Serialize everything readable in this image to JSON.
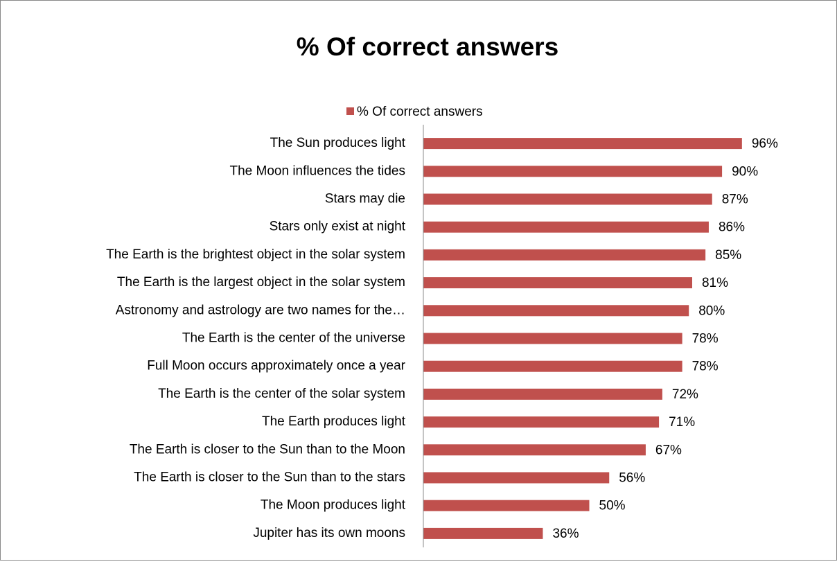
{
  "chart_data": {
    "type": "bar",
    "orientation": "horizontal",
    "title": "% Of correct answers",
    "legend_position": "top",
    "series": [
      {
        "name": "% Of correct answers",
        "color": "#c0504d",
        "values": [
          96,
          90,
          87,
          86,
          85,
          81,
          80,
          78,
          78,
          72,
          71,
          67,
          56,
          50,
          36
        ],
        "value_labels": [
          "96%",
          "90%",
          "87%",
          "86%",
          "85%",
          "81%",
          "80%",
          "78%",
          "78%",
          "72%",
          "71%",
          "67%",
          "56%",
          "50%",
          "36%"
        ]
      }
    ],
    "categories": [
      "The Sun produces light",
      "The Moon influences the tides",
      "Stars may die",
      "Stars only exist at night",
      "The Earth is the brightest object in the solar system",
      "The Earth is the largest object in the solar system",
      "Astronomy and astrology are two names for the…",
      "The Earth is the center of the universe",
      "Full Moon occurs approximately once a year",
      "The Earth is the center of the solar system",
      "The Earth produces light",
      "The Earth is closer to the Sun than to the Moon",
      "The Earth is closer to the Sun than to the stars",
      "The Moon produces light",
      "Jupiter has its own moons"
    ],
    "xlim": [
      0,
      100
    ]
  }
}
